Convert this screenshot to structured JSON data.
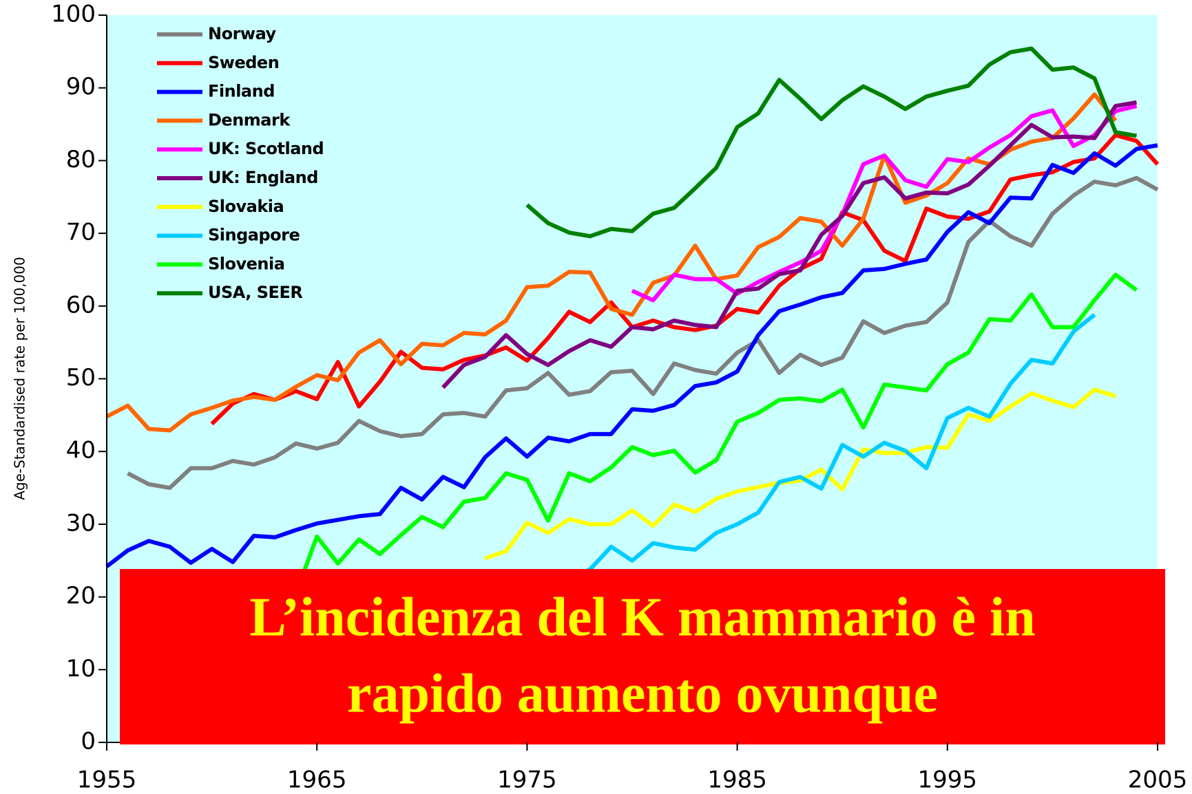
{
  "chart_data": {
    "type": "line",
    "ylabel": "Age-Standardised rate per 100,000",
    "annotation": [
      "L’incidenza del K mammario è in",
      "rapido aumento ovunque"
    ],
    "x": [
      1955,
      1956,
      1957,
      1958,
      1959,
      1960,
      1961,
      1962,
      1963,
      1964,
      1965,
      1966,
      1967,
      1968,
      1969,
      1970,
      1971,
      1972,
      1973,
      1974,
      1975,
      1976,
      1977,
      1978,
      1979,
      1980,
      1981,
      1982,
      1983,
      1984,
      1985,
      1986,
      1987,
      1988,
      1989,
      1990,
      1991,
      1992,
      1993,
      1994,
      1995,
      1996,
      1997,
      1998,
      1999,
      2000,
      2001,
      2002,
      2003,
      2004,
      2005
    ],
    "xlim": [
      1955,
      2005
    ],
    "xticks": [
      1955,
      1965,
      1975,
      1985,
      1995,
      2005
    ],
    "ylim": [
      0,
      100
    ],
    "yticks": [
      0,
      10,
      20,
      30,
      40,
      50,
      60,
      70,
      80,
      90,
      100
    ],
    "legend": "upper left",
    "series": [
      {
        "name": "Norway",
        "color": "#808080",
        "values": [
          null,
          37,
          35.5,
          35,
          37.7,
          37.7,
          38.7,
          38.2,
          39.2,
          41.1,
          40.4,
          41.2,
          44.2,
          42.8,
          42.1,
          42.4,
          45.1,
          45.3,
          44.8,
          48.4,
          48.7,
          50.8,
          47.8,
          48.3,
          50.9,
          51.1,
          47.9,
          52.1,
          51.2,
          50.7,
          53.6,
          55.3,
          50.8,
          53.3,
          51.9,
          52.9,
          57.9,
          56.3,
          57.3,
          57.8,
          60.5,
          68.8,
          71.7,
          69.6,
          68.3,
          72.7,
          75.2,
          77.1,
          76.6,
          77.6,
          76.0
        ]
      },
      {
        "name": "Sweden",
        "color": "#ff0000",
        "values": [
          null,
          null,
          null,
          null,
          null,
          43.8,
          46.6,
          47.9,
          47.1,
          48.3,
          47.2,
          52.3,
          46.2,
          49.6,
          53.7,
          51.5,
          51.3,
          52.6,
          53.2,
          54.3,
          52.5,
          55.6,
          59.2,
          57.8,
          60.5,
          57.1,
          58.0,
          57.1,
          56.7,
          57.3,
          59.6,
          59.1,
          62.8,
          65.1,
          66.5,
          72.9,
          71.8,
          67.6,
          66.2,
          73.4,
          72.3,
          72.0,
          73.0,
          77.4,
          78.0,
          78.4,
          79.8,
          80.3,
          83.5,
          82.7,
          79.5
        ]
      },
      {
        "name": "Finland",
        "color": "#0000ff",
        "values": [
          24.2,
          26.4,
          27.7,
          26.9,
          24.7,
          26.6,
          24.8,
          28.4,
          28.2,
          29.2,
          30.1,
          30.6,
          31.1,
          31.4,
          35.0,
          33.4,
          36.5,
          35.1,
          39.2,
          41.8,
          39.3,
          41.9,
          41.4,
          42.4,
          42.4,
          45.8,
          45.6,
          46.4,
          49.0,
          49.5,
          51.0,
          56.0,
          59.3,
          60.2,
          61.2,
          61.8,
          64.9,
          65.1,
          65.8,
          66.4,
          70.2,
          72.9,
          71.4,
          74.9,
          74.8,
          79.4,
          78.3,
          81.0,
          79.3,
          81.6,
          82.1
        ]
      },
      {
        "name": "Denmark",
        "color": "#ff6600",
        "values": [
          44.8,
          46.3,
          43.1,
          42.9,
          45.1,
          46.0,
          47.0,
          47.5,
          47.1,
          48.9,
          50.5,
          49.8,
          53.6,
          55.3,
          52.0,
          54.8,
          54.6,
          56.3,
          56.1,
          58.0,
          62.6,
          62.8,
          64.7,
          64.6,
          59.6,
          58.8,
          63.2,
          64.2,
          68.3,
          63.7,
          64.2,
          68.1,
          69.5,
          72.1,
          71.6,
          68.3,
          72.0,
          80.7,
          74.2,
          75.2,
          76.9,
          80.3,
          79.5,
          81.5,
          82.6,
          83.1,
          85.8,
          89.1,
          85.5,
          null,
          null
        ]
      },
      {
        "name": "UK: Scotland",
        "color": "#ff00ff",
        "values": [
          null,
          null,
          null,
          null,
          null,
          null,
          null,
          null,
          null,
          null,
          null,
          null,
          null,
          null,
          null,
          null,
          null,
          null,
          null,
          null,
          null,
          null,
          null,
          null,
          null,
          62.1,
          60.8,
          64.3,
          63.7,
          63.7,
          61.7,
          63.3,
          64.7,
          66.0,
          67.6,
          72.6,
          79.5,
          80.7,
          77.3,
          76.4,
          80.2,
          79.8,
          81.8,
          83.5,
          86.1,
          86.9,
          82.0,
          83.5,
          86.8,
          87.5,
          null
        ]
      },
      {
        "name": "UK: England",
        "color": "#800080",
        "values": [
          null,
          null,
          null,
          null,
          null,
          null,
          null,
          null,
          null,
          null,
          null,
          null,
          null,
          null,
          null,
          null,
          48.8,
          51.9,
          53.0,
          56.0,
          53.4,
          51.9,
          53.8,
          55.3,
          54.4,
          57.1,
          56.8,
          58.0,
          57.4,
          57.1,
          62.1,
          62.4,
          64.4,
          64.9,
          69.8,
          72.4,
          76.9,
          77.7,
          74.8,
          75.6,
          75.5,
          76.7,
          79.3,
          82.1,
          84.9,
          83.2,
          83.3,
          83.1,
          87.5,
          88.0,
          null
        ]
      },
      {
        "name": "Slovakia",
        "color": "#ffff00",
        "values": [
          null,
          null,
          null,
          null,
          null,
          null,
          null,
          null,
          null,
          null,
          null,
          null,
          null,
          null,
          null,
          null,
          null,
          null,
          25.3,
          26.3,
          30.2,
          28.8,
          30.7,
          30.0,
          30.0,
          31.9,
          29.8,
          32.7,
          31.7,
          33.5,
          34.5,
          35.1,
          35.7,
          36.0,
          37.5,
          34.8,
          40.3,
          39.8,
          39.8,
          40.6,
          40.5,
          45.1,
          44.2,
          46.2,
          48.0,
          47.0,
          46.1,
          48.5,
          47.6,
          null,
          null
        ]
      },
      {
        "name": "Singapore",
        "color": "#00ccff",
        "values": [
          null,
          null,
          null,
          null,
          null,
          null,
          null,
          null,
          null,
          null,
          null,
          null,
          null,
          null,
          null,
          null,
          null,
          null,
          null,
          null,
          null,
          null,
          22.3,
          23.8,
          26.9,
          25.0,
          27.4,
          26.8,
          26.5,
          28.8,
          30.0,
          31.6,
          35.8,
          36.5,
          34.9,
          40.9,
          39.3,
          41.2,
          40.1,
          37.7,
          44.6,
          46.0,
          44.8,
          49.3,
          52.6,
          52.1,
          56.5,
          58.8,
          null,
          null,
          null
        ]
      },
      {
        "name": "Slovenia",
        "color": "#00ff00",
        "values": [
          null,
          null,
          null,
          null,
          null,
          null,
          null,
          null,
          23.6,
          20.5,
          28.3,
          24.6,
          27.9,
          25.9,
          28.5,
          31.0,
          29.6,
          33.1,
          33.6,
          37.0,
          36.1,
          30.5,
          37.0,
          35.9,
          37.8,
          40.6,
          39.5,
          40.1,
          37.1,
          38.8,
          44.1,
          45.3,
          47.1,
          47.3,
          46.9,
          48.5,
          43.3,
          49.2,
          48.8,
          48.4,
          52.0,
          53.6,
          58.2,
          58.0,
          61.6,
          57.1,
          57.1,
          60.8,
          64.3,
          62.2,
          null
        ]
      },
      {
        "name": "USA, SEER",
        "color": "#008000",
        "values": [
          null,
          null,
          null,
          null,
          null,
          null,
          null,
          null,
          null,
          null,
          null,
          null,
          null,
          null,
          null,
          null,
          null,
          null,
          null,
          null,
          73.9,
          71.4,
          70.1,
          69.6,
          70.6,
          70.3,
          72.7,
          73.5,
          76.2,
          79.0,
          84.6,
          86.5,
          91.1,
          88.5,
          85.7,
          88.3,
          90.2,
          88.8,
          87.1,
          88.8,
          89.6,
          90.3,
          93.2,
          94.9,
          95.4,
          92.5,
          92.8,
          91.3,
          83.9,
          83.4,
          null
        ]
      }
    ]
  }
}
